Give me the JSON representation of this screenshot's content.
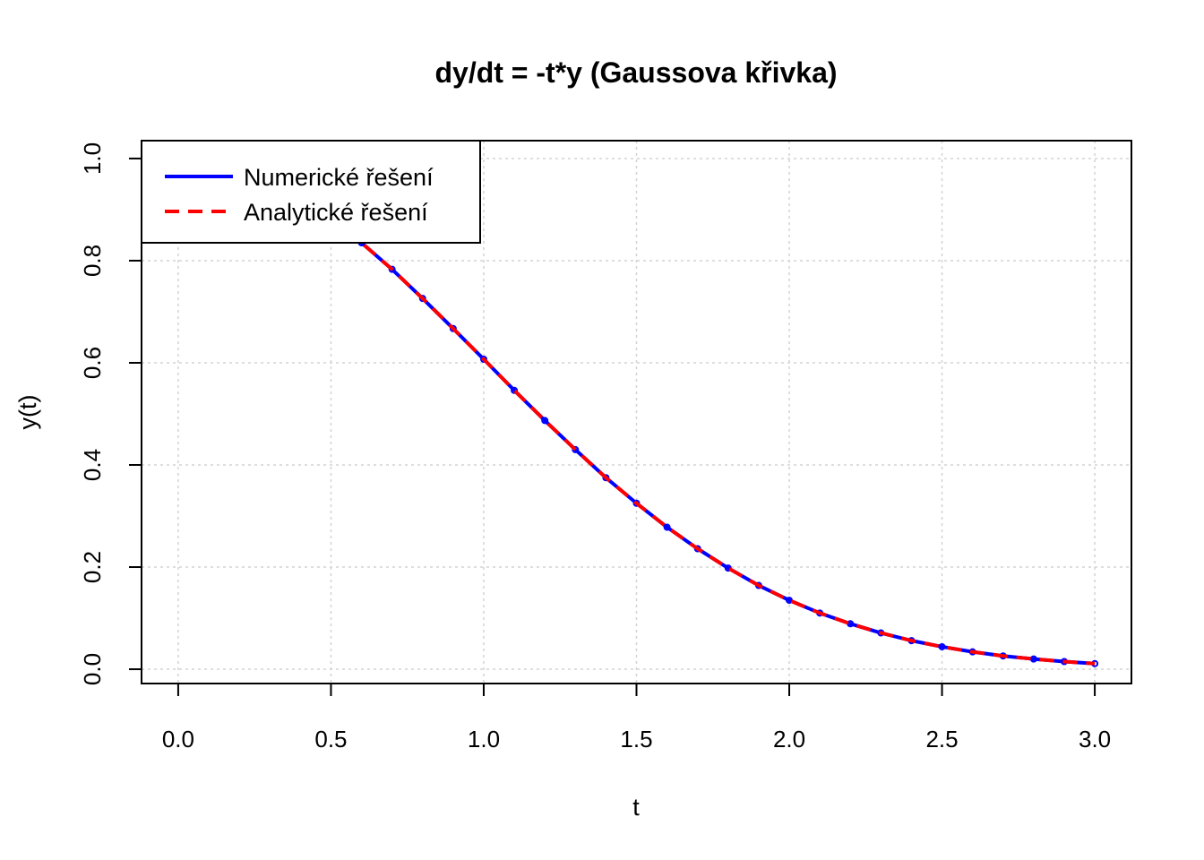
{
  "chart_data": {
    "type": "line",
    "title": "dy/dt = -t*y (Gaussova křivka)",
    "xlabel": "t",
    "ylabel": "y(t)",
    "xlim": [
      -0.12,
      3.12
    ],
    "ylim": [
      -0.028,
      1.035
    ],
    "xticks": [
      "0.0",
      "0.5",
      "1.0",
      "1.5",
      "2.0",
      "2.5",
      "3.0"
    ],
    "yticks": [
      "0.0",
      "0.2",
      "0.4",
      "0.6",
      "0.8",
      "1.0"
    ],
    "grid": true,
    "legend_position": "top-left",
    "x": [
      0.0,
      0.1,
      0.2,
      0.3,
      0.4,
      0.5,
      0.6,
      0.7,
      0.8,
      0.9,
      1.0,
      1.1,
      1.2,
      1.3,
      1.4,
      1.5,
      1.6,
      1.7,
      1.8,
      1.9,
      2.0,
      2.1,
      2.2,
      2.3,
      2.4,
      2.5,
      2.6,
      2.7,
      2.8,
      2.9,
      3.0
    ],
    "series": [
      {
        "name": "Numerické řešení",
        "color": "#0000ff",
        "style": "solid",
        "markers": true,
        "values": [
          1.0,
          0.995,
          0.98,
          0.956,
          0.923,
          0.882,
          0.835,
          0.783,
          0.726,
          0.667,
          0.607,
          0.546,
          0.487,
          0.43,
          0.375,
          0.325,
          0.278,
          0.236,
          0.198,
          0.164,
          0.135,
          0.11,
          0.089,
          0.071,
          0.056,
          0.044,
          0.034,
          0.026,
          0.02,
          0.015,
          0.011
        ]
      },
      {
        "name": "Analytické řešení",
        "color": "#ff0000",
        "style": "dashed",
        "markers": false,
        "values": [
          1.0,
          0.995,
          0.98,
          0.956,
          0.923,
          0.882,
          0.835,
          0.783,
          0.726,
          0.667,
          0.607,
          0.546,
          0.487,
          0.43,
          0.375,
          0.325,
          0.278,
          0.236,
          0.198,
          0.164,
          0.135,
          0.11,
          0.089,
          0.071,
          0.056,
          0.044,
          0.034,
          0.026,
          0.02,
          0.015,
          0.011
        ]
      }
    ]
  }
}
